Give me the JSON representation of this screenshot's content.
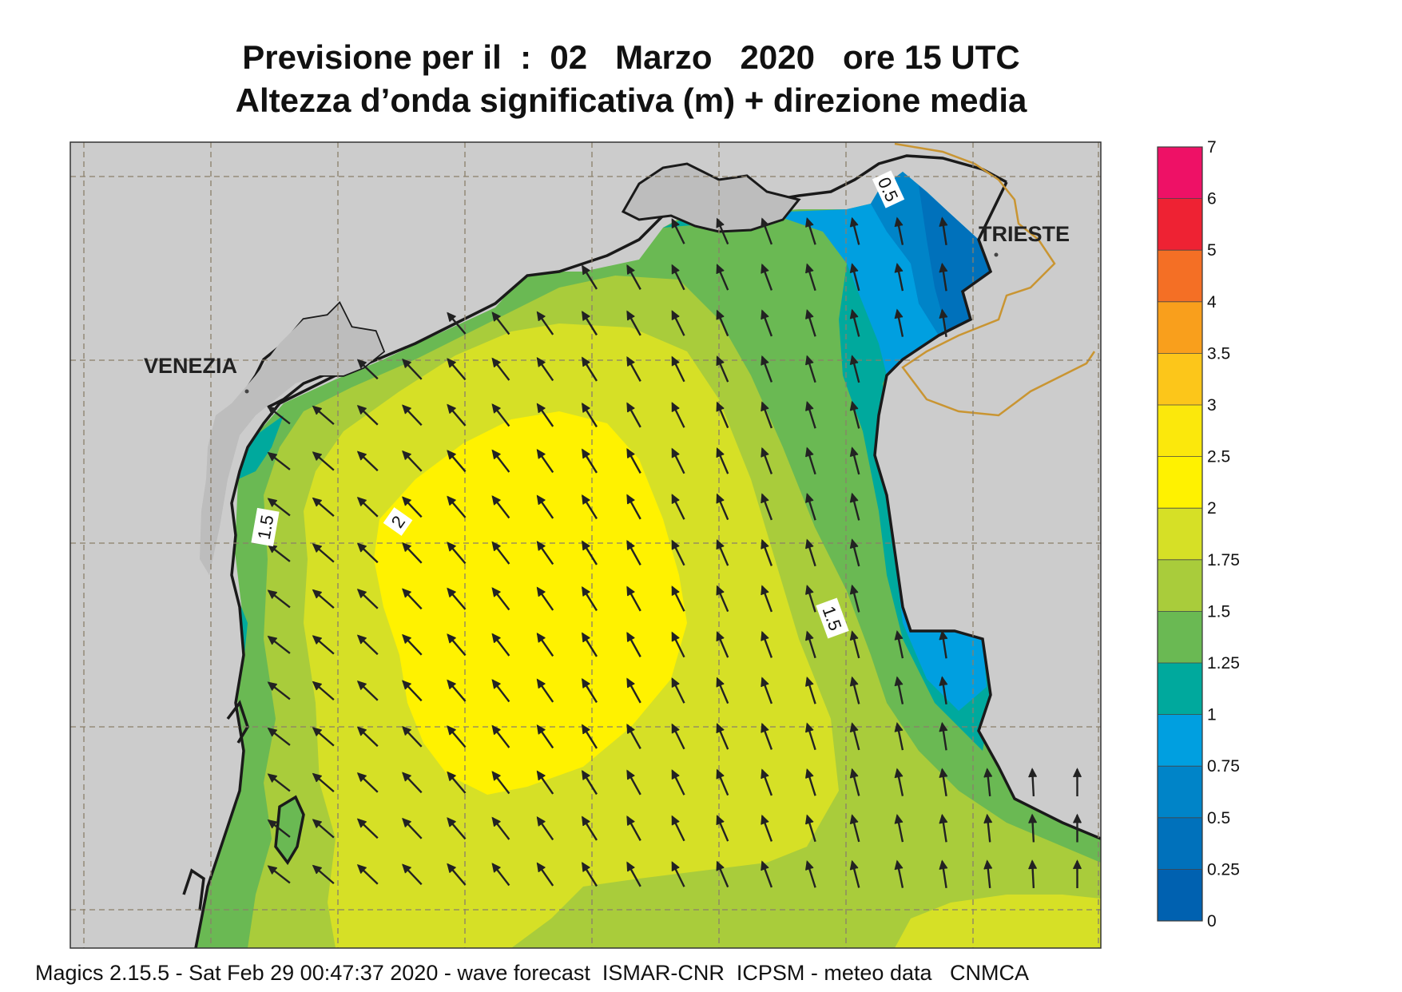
{
  "title": {
    "line1": "Previsione per il  :  02   Marzo   2020   ore 15 UTC",
    "line2": "Altezza d’onda significativa (m) + direzione media"
  },
  "places": {
    "venezia": "VENEZIA",
    "trieste": "TRIESTE"
  },
  "contour_labels": [
    "1.5",
    "2",
    "1.5",
    "0.5"
  ],
  "legend": {
    "levels": [
      "7",
      "6",
      "5",
      "4",
      "3.5",
      "3",
      "2.5",
      "2",
      "1.75",
      "1.5",
      "1.25",
      "1",
      "0.75",
      "0.5",
      "0.25",
      "0"
    ],
    "colors": [
      "#ee1166",
      "#ee2233",
      "#f46f25",
      "#f99f1c",
      "#fcc61a",
      "#fbe80c",
      "#fff200",
      "#d6e026",
      "#a9cc3b",
      "#6ab953",
      "#00a99d",
      "#009fe0",
      "#0084c8",
      "#0071bb",
      "#0061b0"
    ]
  },
  "footer": "Magics 2.15.5 - Sat Feb 29 00:47:37 2020 - wave forecast  ISMAR-CNR  ICPSM - meteo data   CNMCA",
  "colors": {
    "land": "#cccccc",
    "coast": "#1a1a1a",
    "arrow": "#222222",
    "border": "#c99532"
  }
}
